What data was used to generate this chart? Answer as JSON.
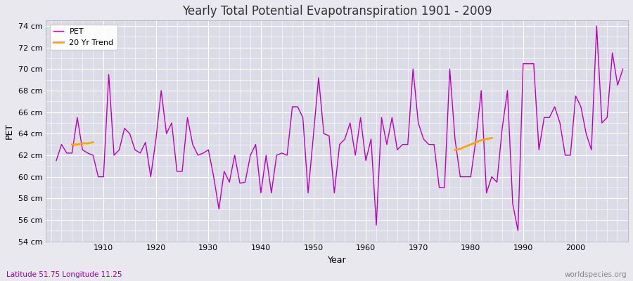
{
  "title": "Yearly Total Potential Evapotranspiration 1901 - 2009",
  "xlabel": "Year",
  "ylabel": "PET",
  "subtitle_left": "Latitude 51.75 Longitude 11.25",
  "subtitle_right": "worldspecies.org",
  "ylim": [
    54,
    74.5
  ],
  "xlim": [
    1899,
    2010
  ],
  "ytick_labels": [
    "54 cm",
    "56 cm",
    "58 cm",
    "60 cm",
    "62 cm",
    "64 cm",
    "66 cm",
    "68 cm",
    "70 cm",
    "72 cm",
    "74 cm"
  ],
  "ytick_values": [
    54,
    56,
    58,
    60,
    62,
    64,
    66,
    68,
    70,
    72,
    74
  ],
  "xtick_values": [
    1910,
    1920,
    1930,
    1940,
    1950,
    1960,
    1970,
    1980,
    1990,
    2000
  ],
  "pet_color": "#bb00bb",
  "trend_color": "#ffa500",
  "background_color": "#e8e8ee",
  "plot_bg_color": "#dcdce8",
  "years": [
    1901,
    1902,
    1903,
    1904,
    1905,
    1906,
    1907,
    1908,
    1909,
    1910,
    1911,
    1912,
    1913,
    1914,
    1915,
    1916,
    1917,
    1918,
    1919,
    1920,
    1921,
    1922,
    1923,
    1924,
    1925,
    1926,
    1927,
    1928,
    1929,
    1930,
    1931,
    1932,
    1933,
    1934,
    1935,
    1936,
    1937,
    1938,
    1939,
    1940,
    1941,
    1942,
    1943,
    1944,
    1945,
    1946,
    1947,
    1948,
    1949,
    1950,
    1951,
    1952,
    1953,
    1954,
    1955,
    1956,
    1957,
    1958,
    1959,
    1960,
    1961,
    1962,
    1963,
    1964,
    1965,
    1966,
    1967,
    1968,
    1969,
    1970,
    1971,
    1972,
    1973,
    1974,
    1975,
    1976,
    1977,
    1978,
    1979,
    1980,
    1981,
    1982,
    1983,
    1984,
    1985,
    1986,
    1987,
    1988,
    1989,
    1990,
    1991,
    1992,
    1993,
    1994,
    1995,
    1996,
    1997,
    1998,
    1999,
    2000,
    2001,
    2002,
    2003,
    2004,
    2005,
    2006,
    2007,
    2008,
    2009
  ],
  "pet_values": [
    61.5,
    63.0,
    62.2,
    62.2,
    65.5,
    62.5,
    62.2,
    62.0,
    60.0,
    60.0,
    69.5,
    62.0,
    62.5,
    64.5,
    64.0,
    62.5,
    62.2,
    63.2,
    60.0,
    63.5,
    68.0,
    64.0,
    65.0,
    60.5,
    60.5,
    65.5,
    63.0,
    62.0,
    62.2,
    62.5,
    60.0,
    57.0,
    60.5,
    59.5,
    62.0,
    59.4,
    59.5,
    62.0,
    63.0,
    58.5,
    62.0,
    58.5,
    62.0,
    62.2,
    62.0,
    66.5,
    66.5,
    65.5,
    58.5,
    63.8,
    69.2,
    64.0,
    63.8,
    58.5,
    63.0,
    63.5,
    65.0,
    62.0,
    65.5,
    61.5,
    63.5,
    55.5,
    65.5,
    63.0,
    65.5,
    62.5,
    63.0,
    63.0,
    70.0,
    65.0,
    63.5,
    63.0,
    63.0,
    59.0,
    59.0,
    70.0,
    63.5,
    60.0,
    60.0,
    60.0,
    63.5,
    68.0,
    58.5,
    60.0,
    59.5,
    64.5,
    68.0,
    57.5,
    55.0,
    70.5,
    70.5,
    70.5,
    62.5,
    65.5,
    65.5,
    66.5,
    65.0,
    62.0,
    62.0,
    67.5,
    66.5,
    64.0,
    62.5,
    74.0,
    65.0,
    65.5,
    71.5,
    68.5,
    70.0
  ],
  "trend_seg1_years": [
    1904,
    1905,
    1906,
    1907,
    1908
  ],
  "trend_seg1_values": [
    63.0,
    63.0,
    63.1,
    63.1,
    63.2
  ],
  "trend_seg2_years": [
    1977,
    1978,
    1979,
    1980,
    1981,
    1982,
    1983,
    1984
  ],
  "trend_seg2_values": [
    62.5,
    62.6,
    62.8,
    63.0,
    63.2,
    63.4,
    63.5,
    63.6
  ]
}
